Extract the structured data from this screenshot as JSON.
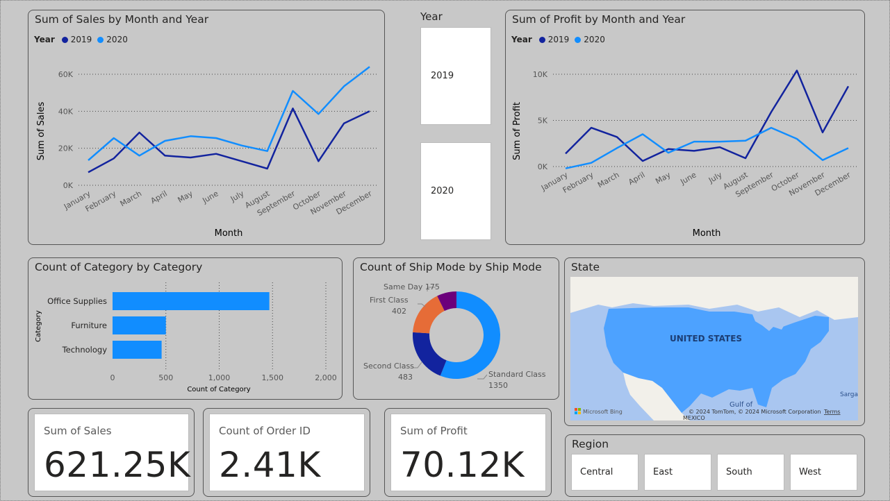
{
  "colors": {
    "s2019": "#12239e",
    "s2020": "#118dff",
    "bar": "#118dff",
    "orange": "#e66c37",
    "purple": "#6b007b"
  },
  "sales_chart": {
    "title": "Sum of Sales by Month and Year",
    "legend_label": "Year",
    "legend_2019": "2019",
    "legend_2020": "2020",
    "ylabel": "Sum of Sales",
    "xlabel": "Month",
    "yticks": [
      "60K",
      "40K",
      "20K",
      "0K"
    ]
  },
  "profit_chart": {
    "title": "Sum of Profit by Month and Year",
    "legend_label": "Year",
    "legend_2019": "2019",
    "legend_2020": "2020",
    "ylabel": "Sum of Profit",
    "xlabel": "Month",
    "yticks": [
      "10K",
      "5K",
      "0K"
    ]
  },
  "year_slicer": {
    "title": "Year",
    "options": [
      "2019",
      "2020"
    ]
  },
  "category_chart": {
    "title": "Count of Category by Category",
    "ylabel": "Category",
    "xlabel": "Count of Category",
    "xticks": [
      "0",
      "500",
      "1,000",
      "1,500",
      "2,000"
    ]
  },
  "shipmode_chart": {
    "title": "Count of Ship Mode by Ship Mode",
    "labels": {
      "same_day": "Same Day 175",
      "first_class": "First Class",
      "first_class_val": "402",
      "second_class": "Second Class",
      "second_class_val": "483",
      "standard": "Standard Class",
      "standard_val": "1350"
    }
  },
  "state_map": {
    "title": "State",
    "country_label": "UNITED STATES",
    "gulf_label": "Gulf of",
    "mexico_label": "MEXICO",
    "sargas_label": "Sargas",
    "bing_label": "Microsoft Bing",
    "copyright": "© 2024 TomTom, © 2024 Microsoft Corporation",
    "terms": "Terms"
  },
  "kpis": {
    "sales": {
      "label": "Sum of Sales",
      "value": "621.25K"
    },
    "orders": {
      "label": "Count of Order ID",
      "value": "2.41K"
    },
    "profit": {
      "label": "Sum of Profit",
      "value": "70.12K"
    }
  },
  "region_slicer": {
    "title": "Region",
    "options": [
      "Central",
      "East",
      "South",
      "West"
    ]
  },
  "chart_data": [
    {
      "type": "line",
      "title": "Sum of Sales by Month and Year",
      "xlabel": "Month",
      "ylabel": "Sum of Sales",
      "x": [
        "January",
        "February",
        "March",
        "April",
        "May",
        "June",
        "July",
        "August",
        "September",
        "October",
        "November",
        "December"
      ],
      "ylim": [
        0,
        60000
      ],
      "series": [
        {
          "name": "2019",
          "values": [
            7000,
            14500,
            28500,
            16000,
            15000,
            17000,
            13000,
            9000,
            41500,
            13000,
            33500,
            40000
          ]
        },
        {
          "name": "2020",
          "values": [
            13500,
            25500,
            16000,
            24000,
            26500,
            25500,
            21500,
            18500,
            51000,
            38500,
            53500,
            64000
          ]
        }
      ]
    },
    {
      "type": "line",
      "title": "Sum of Profit by Month and Year",
      "xlabel": "Month",
      "ylabel": "Sum of Profit",
      "x": [
        "January",
        "February",
        "March",
        "April",
        "May",
        "June",
        "July",
        "August",
        "September",
        "October",
        "November",
        "December"
      ],
      "ylim": [
        0,
        10000
      ],
      "series": [
        {
          "name": "2019",
          "values": [
            1400,
            4200,
            3200,
            600,
            1900,
            1700,
            2100,
            900,
            5900,
            10400,
            3700,
            8700
          ]
        },
        {
          "name": "2020",
          "values": [
            -200,
            400,
            2000,
            3500,
            1500,
            2700,
            2700,
            2800,
            4200,
            3000,
            700,
            2000
          ]
        }
      ]
    },
    {
      "type": "bar",
      "title": "Count of Category by Category",
      "xlabel": "Count of Category",
      "ylabel": "Category",
      "categories": [
        "Office Supplies",
        "Furniture",
        "Technology"
      ],
      "values": [
        1470,
        500,
        460
      ],
      "xlim": [
        0,
        2000
      ]
    },
    {
      "type": "pie",
      "title": "Count of Ship Mode by Ship Mode",
      "categories": [
        "Standard Class",
        "Second Class",
        "First Class",
        "Same Day"
      ],
      "values": [
        1350,
        483,
        402,
        175
      ]
    }
  ]
}
